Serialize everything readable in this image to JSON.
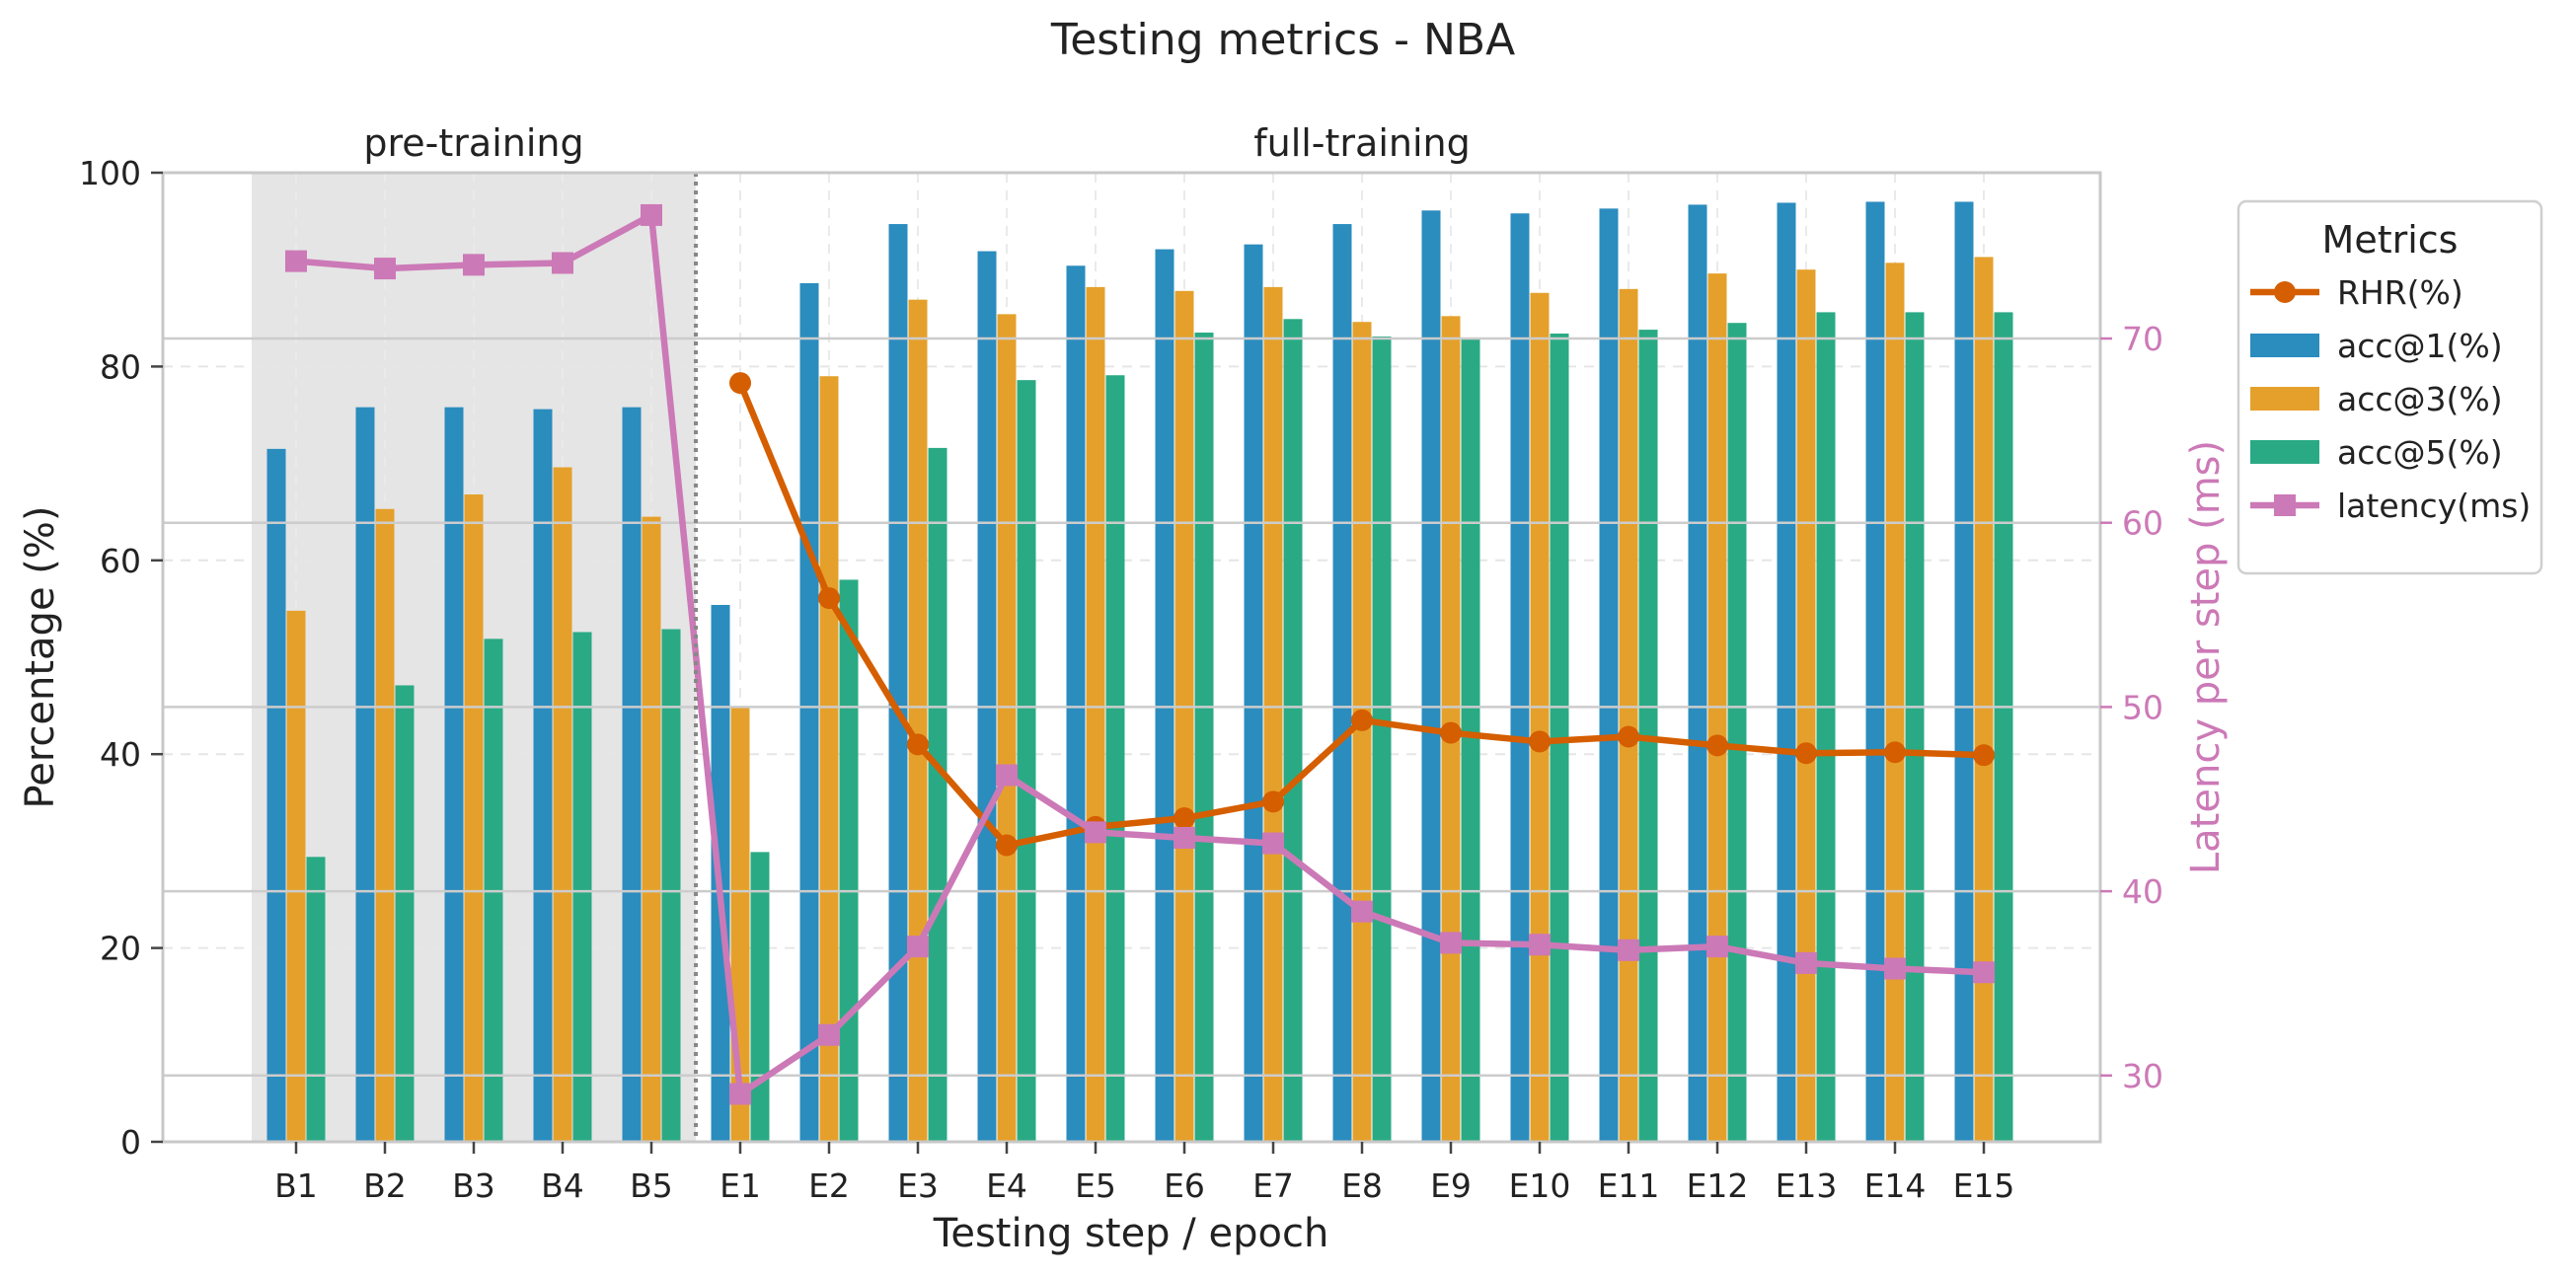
{
  "chart_data": {
    "type": "bar",
    "title": "Testing metrics - NBA",
    "xlabel": "Testing step / epoch",
    "ylabel": "Percentage (%)",
    "ylabel_right": "Latency per step (ms)",
    "ylim": [
      0,
      100
    ],
    "ylim_right": [
      26.4,
      79.0
    ],
    "yticks": [
      0,
      20,
      40,
      60,
      80,
      100
    ],
    "yticks_right": [
      30,
      40,
      50,
      60,
      70
    ],
    "grid": true,
    "legend_placement": "outside right, top",
    "legend_title": "Metrics",
    "categories": [
      "B1",
      "B2",
      "B3",
      "B4",
      "B5",
      "E1",
      "E2",
      "E3",
      "E4",
      "E5",
      "E6",
      "E7",
      "E8",
      "E9",
      "E10",
      "E11",
      "E12",
      "E13",
      "E14",
      "E15"
    ],
    "sections": [
      {
        "label": "pre-training",
        "from": "B1",
        "to": "B5",
        "shaded": true
      },
      {
        "label": "full-training",
        "from": "E1",
        "to": "E15",
        "shaded": false
      }
    ],
    "series": [
      {
        "name": "acc@1(%)",
        "type": "bar",
        "axis": "left",
        "color": "#2b8cbe",
        "values": [
          71.5,
          75.8,
          75.8,
          75.6,
          75.8,
          55.4,
          88.6,
          94.7,
          91.9,
          90.4,
          92.1,
          92.6,
          94.7,
          96.1,
          95.8,
          96.3,
          96.7,
          96.9,
          97.0,
          97.0
        ]
      },
      {
        "name": "acc@3(%)",
        "type": "bar",
        "axis": "left",
        "color": "#e5a02b",
        "values": [
          54.8,
          65.3,
          66.8,
          69.6,
          64.5,
          44.9,
          79.0,
          86.9,
          85.4,
          88.2,
          87.8,
          88.2,
          84.6,
          85.2,
          87.6,
          88.0,
          89.6,
          90.0,
          90.7,
          91.3
        ]
      },
      {
        "name": "acc@5(%)",
        "type": "bar",
        "axis": "left",
        "color": "#2aaa84",
        "values": [
          29.4,
          47.1,
          51.9,
          52.6,
          52.9,
          29.9,
          58.0,
          71.6,
          78.6,
          79.1,
          83.5,
          84.9,
          83.1,
          82.9,
          83.4,
          83.8,
          84.5,
          85.6,
          85.6,
          85.6
        ]
      },
      {
        "name": "RHR(%)",
        "type": "line",
        "axis": "left",
        "color": "#d55e00",
        "marker": "circle",
        "values": [
          null,
          null,
          null,
          null,
          null,
          78.3,
          56.1,
          41.0,
          30.6,
          32.5,
          33.4,
          35.1,
          43.5,
          42.2,
          41.3,
          41.8,
          40.9,
          40.1,
          40.2,
          39.9
        ]
      },
      {
        "name": "latency(ms)",
        "type": "line",
        "axis": "right",
        "color": "#cc79b7",
        "marker": "square",
        "values": [
          74.2,
          73.8,
          74.0,
          74.1,
          76.7,
          29.0,
          32.2,
          37.0,
          46.3,
          43.2,
          42.9,
          42.6,
          38.9,
          37.2,
          37.1,
          36.8,
          37.0,
          36.1,
          35.8,
          35.6
        ]
      }
    ]
  }
}
